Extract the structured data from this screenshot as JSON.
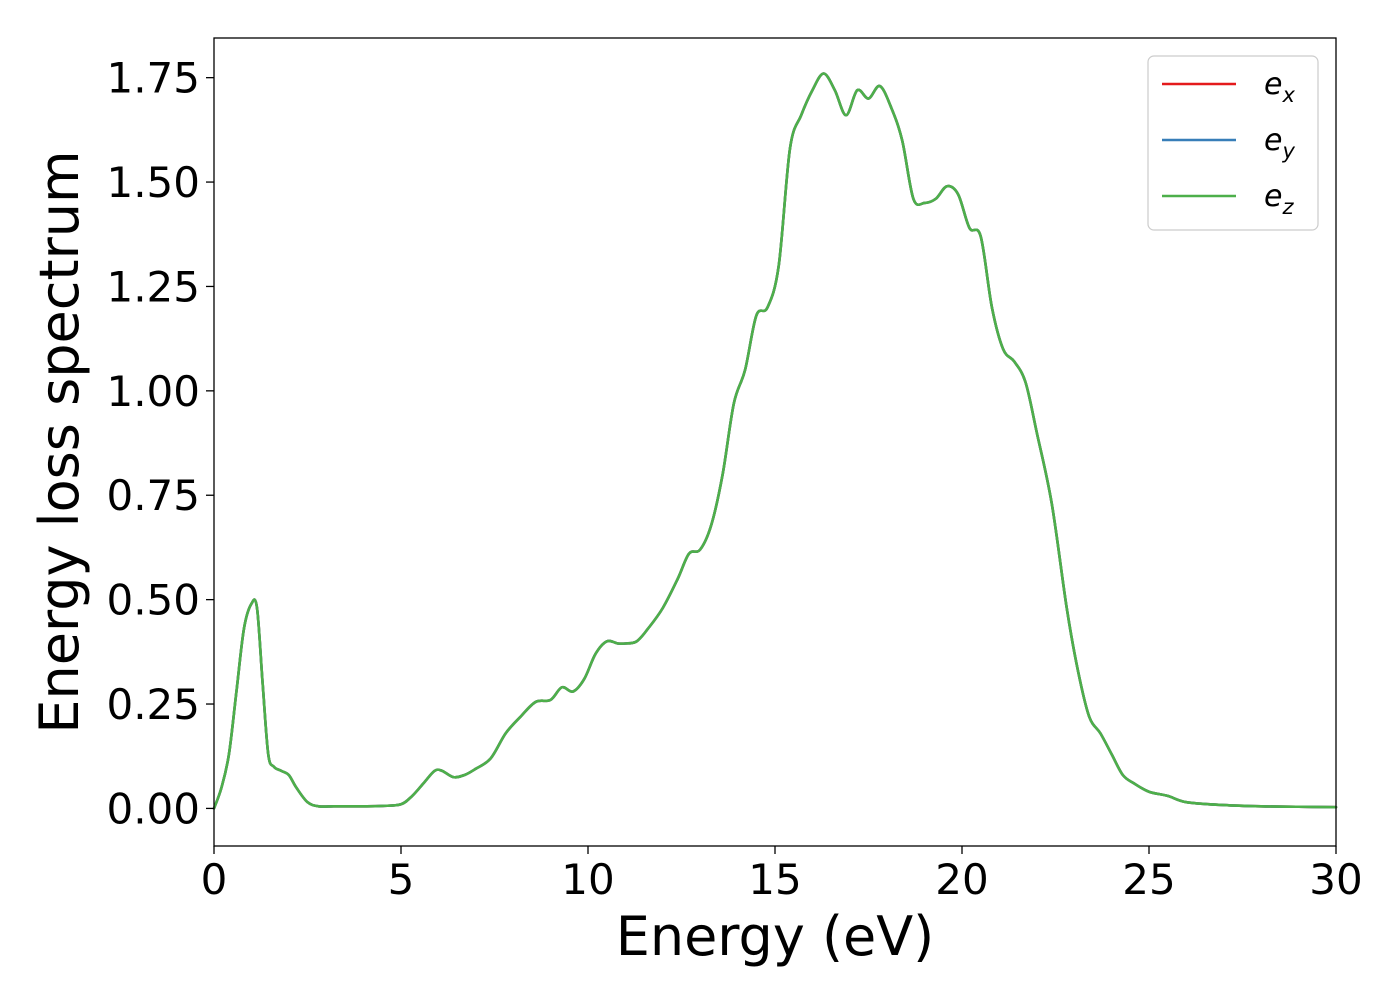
{
  "chart_data": {
    "type": "line",
    "title": "",
    "xlabel": "Energy (eV)",
    "ylabel": "Energy loss spectrum",
    "xlim": [
      0,
      30
    ],
    "ylim": [
      -0.09,
      1.845
    ],
    "xticks": [
      0,
      5,
      10,
      15,
      20,
      25,
      30
    ],
    "xtick_labels": [
      "0",
      "5",
      "10",
      "15",
      "20",
      "25",
      "30"
    ],
    "yticks": [
      0.0,
      0.25,
      0.5,
      0.75,
      1.0,
      1.25,
      1.5,
      1.75
    ],
    "ytick_labels": [
      "0.00",
      "0.25",
      "0.50",
      "0.75",
      "1.00",
      "1.25",
      "1.50",
      "1.75"
    ],
    "grid": false,
    "legend_position": "top-right",
    "series": [
      {
        "name": "e_x",
        "label_base": "e",
        "label_sub": "x",
        "color": "#e41a1c",
        "x": [
          0,
          0.2,
          0.4,
          0.6,
          0.8,
          1.0,
          1.15,
          1.3,
          1.45,
          1.6,
          1.8,
          2.0,
          2.2,
          2.5,
          2.8,
          3.2,
          3.6,
          4.0,
          4.5,
          5.0,
          5.3,
          5.6,
          5.9,
          6.1,
          6.4,
          6.7,
          7.0,
          7.4,
          7.8,
          8.2,
          8.6,
          9.0,
          9.3,
          9.6,
          9.9,
          10.2,
          10.5,
          10.8,
          11.0,
          11.3,
          11.6,
          12.0,
          12.4,
          12.7,
          13.0,
          13.3,
          13.6,
          13.9,
          14.2,
          14.5,
          14.8,
          15.1,
          15.4,
          15.7,
          16.0,
          16.3,
          16.6,
          16.9,
          17.2,
          17.5,
          17.8,
          18.1,
          18.4,
          18.7,
          19.0,
          19.3,
          19.6,
          19.9,
          20.2,
          20.5,
          20.8,
          21.1,
          21.4,
          21.7,
          22.0,
          22.4,
          22.8,
          23.1,
          23.4,
          23.7,
          24.0,
          24.3,
          24.6,
          25.0,
          25.5,
          26.0,
          27.0,
          28.0,
          29.0,
          30.0
        ],
        "y": [
          0.0,
          0.05,
          0.13,
          0.28,
          0.43,
          0.49,
          0.48,
          0.3,
          0.13,
          0.1,
          0.09,
          0.08,
          0.05,
          0.015,
          0.005,
          0.005,
          0.005,
          0.005,
          0.006,
          0.01,
          0.03,
          0.06,
          0.09,
          0.09,
          0.075,
          0.08,
          0.095,
          0.12,
          0.18,
          0.22,
          0.255,
          0.26,
          0.29,
          0.28,
          0.31,
          0.37,
          0.4,
          0.395,
          0.395,
          0.4,
          0.43,
          0.48,
          0.55,
          0.61,
          0.62,
          0.68,
          0.8,
          0.97,
          1.05,
          1.18,
          1.2,
          1.3,
          1.58,
          1.66,
          1.72,
          1.76,
          1.72,
          1.66,
          1.72,
          1.7,
          1.73,
          1.68,
          1.6,
          1.46,
          1.45,
          1.46,
          1.49,
          1.47,
          1.39,
          1.37,
          1.2,
          1.1,
          1.07,
          1.02,
          0.9,
          0.73,
          0.48,
          0.33,
          0.22,
          0.18,
          0.13,
          0.08,
          0.06,
          0.04,
          0.03,
          0.015,
          0.008,
          0.005,
          0.004,
          0.003
        ]
      },
      {
        "name": "e_y",
        "label_base": "e",
        "label_sub": "y",
        "color": "#377eb8",
        "x": [
          0,
          0.2,
          0.4,
          0.6,
          0.8,
          1.0,
          1.15,
          1.3,
          1.45,
          1.6,
          1.8,
          2.0,
          2.2,
          2.5,
          2.8,
          3.2,
          3.6,
          4.0,
          4.5,
          5.0,
          5.3,
          5.6,
          5.9,
          6.1,
          6.4,
          6.7,
          7.0,
          7.4,
          7.8,
          8.2,
          8.6,
          9.0,
          9.3,
          9.6,
          9.9,
          10.2,
          10.5,
          10.8,
          11.0,
          11.3,
          11.6,
          12.0,
          12.4,
          12.7,
          13.0,
          13.3,
          13.6,
          13.9,
          14.2,
          14.5,
          14.8,
          15.1,
          15.4,
          15.7,
          16.0,
          16.3,
          16.6,
          16.9,
          17.2,
          17.5,
          17.8,
          18.1,
          18.4,
          18.7,
          19.0,
          19.3,
          19.6,
          19.9,
          20.2,
          20.5,
          20.8,
          21.1,
          21.4,
          21.7,
          22.0,
          22.4,
          22.8,
          23.1,
          23.4,
          23.7,
          24.0,
          24.3,
          24.6,
          25.0,
          25.5,
          26.0,
          27.0,
          28.0,
          29.0,
          30.0
        ],
        "y": [
          0.0,
          0.05,
          0.13,
          0.28,
          0.43,
          0.49,
          0.48,
          0.3,
          0.13,
          0.1,
          0.09,
          0.08,
          0.05,
          0.015,
          0.005,
          0.005,
          0.005,
          0.005,
          0.006,
          0.01,
          0.03,
          0.06,
          0.09,
          0.09,
          0.075,
          0.08,
          0.095,
          0.12,
          0.18,
          0.22,
          0.255,
          0.26,
          0.29,
          0.28,
          0.31,
          0.37,
          0.4,
          0.395,
          0.395,
          0.4,
          0.43,
          0.48,
          0.55,
          0.61,
          0.62,
          0.68,
          0.8,
          0.97,
          1.05,
          1.18,
          1.2,
          1.3,
          1.58,
          1.66,
          1.72,
          1.76,
          1.72,
          1.66,
          1.72,
          1.7,
          1.73,
          1.68,
          1.6,
          1.46,
          1.45,
          1.46,
          1.49,
          1.47,
          1.39,
          1.37,
          1.2,
          1.1,
          1.07,
          1.02,
          0.9,
          0.73,
          0.48,
          0.33,
          0.22,
          0.18,
          0.13,
          0.08,
          0.06,
          0.04,
          0.03,
          0.015,
          0.008,
          0.005,
          0.004,
          0.003
        ]
      },
      {
        "name": "e_z",
        "label_base": "e",
        "label_sub": "z",
        "color": "#4daf4a",
        "x": [
          0,
          0.2,
          0.4,
          0.6,
          0.8,
          1.0,
          1.15,
          1.3,
          1.45,
          1.6,
          1.8,
          2.0,
          2.2,
          2.5,
          2.8,
          3.2,
          3.6,
          4.0,
          4.5,
          5.0,
          5.3,
          5.6,
          5.9,
          6.1,
          6.4,
          6.7,
          7.0,
          7.4,
          7.8,
          8.2,
          8.6,
          9.0,
          9.3,
          9.6,
          9.9,
          10.2,
          10.5,
          10.8,
          11.0,
          11.3,
          11.6,
          12.0,
          12.4,
          12.7,
          13.0,
          13.3,
          13.6,
          13.9,
          14.2,
          14.5,
          14.8,
          15.1,
          15.4,
          15.7,
          16.0,
          16.3,
          16.6,
          16.9,
          17.2,
          17.5,
          17.8,
          18.1,
          18.4,
          18.7,
          19.0,
          19.3,
          19.6,
          19.9,
          20.2,
          20.5,
          20.8,
          21.1,
          21.4,
          21.7,
          22.0,
          22.4,
          22.8,
          23.1,
          23.4,
          23.7,
          24.0,
          24.3,
          24.6,
          25.0,
          25.5,
          26.0,
          27.0,
          28.0,
          29.0,
          30.0
        ],
        "y": [
          0.0,
          0.05,
          0.13,
          0.28,
          0.43,
          0.49,
          0.48,
          0.3,
          0.13,
          0.1,
          0.09,
          0.08,
          0.05,
          0.015,
          0.005,
          0.005,
          0.005,
          0.005,
          0.006,
          0.01,
          0.03,
          0.06,
          0.09,
          0.09,
          0.075,
          0.08,
          0.095,
          0.12,
          0.18,
          0.22,
          0.255,
          0.26,
          0.29,
          0.28,
          0.31,
          0.37,
          0.4,
          0.395,
          0.395,
          0.4,
          0.43,
          0.48,
          0.55,
          0.61,
          0.62,
          0.68,
          0.8,
          0.97,
          1.05,
          1.18,
          1.2,
          1.3,
          1.58,
          1.66,
          1.72,
          1.76,
          1.72,
          1.66,
          1.72,
          1.7,
          1.73,
          1.68,
          1.6,
          1.46,
          1.45,
          1.46,
          1.49,
          1.47,
          1.39,
          1.37,
          1.2,
          1.1,
          1.07,
          1.02,
          0.9,
          0.73,
          0.48,
          0.33,
          0.22,
          0.18,
          0.13,
          0.08,
          0.06,
          0.04,
          0.03,
          0.015,
          0.008,
          0.005,
          0.004,
          0.003
        ]
      }
    ]
  }
}
